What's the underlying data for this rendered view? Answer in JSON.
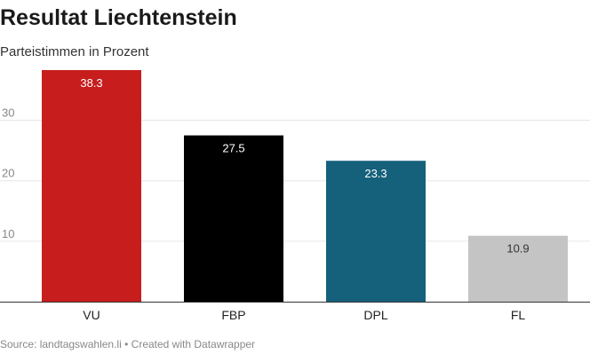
{
  "chart_data": {
    "type": "bar",
    "title": "Resultat Liechtenstein",
    "subtitle": "Parteistimmen in Prozent",
    "categories": [
      "VU",
      "FBP",
      "DPL",
      "FL"
    ],
    "values": [
      38.3,
      27.5,
      23.3,
      10.9
    ],
    "value_labels": [
      "38.3",
      "27.5",
      "23.3",
      "10.9"
    ],
    "colors": [
      "#c71e1d",
      "#000000",
      "#15607a",
      "#c4c4c4"
    ],
    "label_colors": [
      "#ffffff",
      "#ffffff",
      "#ffffff",
      "#333333"
    ],
    "yticks": [
      10,
      20,
      30
    ],
    "ylim": [
      0,
      38.3
    ],
    "grid": true,
    "xlabel": "",
    "ylabel": ""
  },
  "footer": {
    "source": "Source: landtagswahlen.li",
    "separator": "•",
    "credit": "Created with Datawrapper"
  }
}
